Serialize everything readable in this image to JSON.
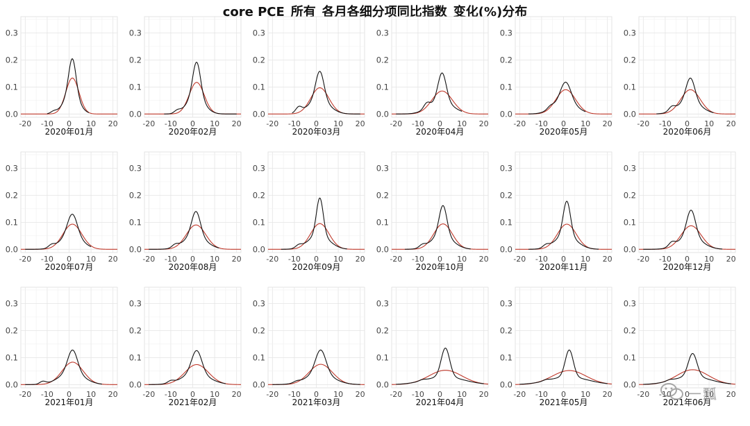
{
  "title": "core PCE_所有_各月各细分项同比指数_变化(%)分布",
  "watermark": "一瓢",
  "colors": {
    "density": "#111111",
    "normal": "#c0392b",
    "grid": "#e4e4e4",
    "axis_text": "#444444",
    "frame": "#dddddd"
  },
  "chart_data": {
    "type": "line",
    "description_axes": {
      "xlim": [
        -22,
        22
      ],
      "ylim": [
        -0.012,
        0.36
      ],
      "xticks": [
        -20,
        -10,
        0,
        10,
        20
      ],
      "yticks": [
        0.0,
        0.1,
        0.2,
        0.3
      ]
    },
    "ytick_labels": [
      "0.0",
      "0.1",
      "0.2",
      "0.3"
    ],
    "xtick_labels": [
      "-20",
      "-10",
      "0",
      "10",
      "20"
    ],
    "panels": [
      {
        "label": "2020年01月",
        "peak": 0.205,
        "mean": 1.5,
        "sd": 3.0,
        "normal_peak": 0.133,
        "x_range": [
          -10,
          9
        ],
        "left_bump": [
          -7,
          0.008
        ]
      },
      {
        "label": "2020年02月",
        "peak": 0.192,
        "mean": 1.8,
        "sd": 3.2,
        "normal_peak": 0.117,
        "x_range": [
          -13,
          20
        ],
        "left_bump": [
          -7,
          0.01
        ]
      },
      {
        "label": "2020年03月",
        "peak": 0.158,
        "mean": 1.6,
        "sd": 3.4,
        "normal_peak": 0.097,
        "x_range": [
          -11,
          20
        ],
        "left_bump": [
          -8,
          0.02
        ]
      },
      {
        "label": "2020年04月",
        "peak": 0.152,
        "mean": 1.0,
        "sd": 3.4,
        "normal_peak": 0.085,
        "x_range": [
          -20,
          10
        ],
        "left_bump": [
          -6,
          0.02
        ]
      },
      {
        "label": "2020年05月",
        "peak": 0.118,
        "mean": 1.0,
        "sd": 4.2,
        "normal_peak": 0.09,
        "x_range": [
          -16,
          10
        ],
        "left_bump": [
          -6,
          0.01
        ]
      },
      {
        "label": "2020年06月",
        "peak": 0.133,
        "mean": 1.5,
        "sd": 3.6,
        "normal_peak": 0.09,
        "x_range": [
          -14,
          12
        ],
        "left_bump": [
          -7,
          0.015
        ]
      },
      {
        "label": "2020年07月",
        "peak": 0.13,
        "mean": 1.5,
        "sd": 4.0,
        "normal_peak": 0.093,
        "x_range": [
          -20,
          10
        ],
        "left_bump": [
          -8,
          0.01
        ]
      },
      {
        "label": "2020年08月",
        "peak": 0.14,
        "mean": 1.5,
        "sd": 3.6,
        "normal_peak": 0.09,
        "x_range": [
          -20,
          12
        ],
        "left_bump": [
          -8,
          0.01
        ]
      },
      {
        "label": "2020年09月",
        "peak": 0.19,
        "mean": 1.6,
        "sd": 2.8,
        "normal_peak": 0.095,
        "x_range": [
          -16,
          14
        ],
        "left_bump": [
          -8,
          0.01
        ]
      },
      {
        "label": "2020年10月",
        "peak": 0.162,
        "mean": 1.4,
        "sd": 3.2,
        "normal_peak": 0.094,
        "x_range": [
          -16,
          14
        ],
        "left_bump": [
          -8,
          0.01
        ]
      },
      {
        "label": "2020年11月",
        "peak": 0.178,
        "mean": 1.5,
        "sd": 3.0,
        "normal_peak": 0.093,
        "x_range": [
          -16,
          16
        ],
        "left_bump": [
          -8,
          0.01
        ]
      },
      {
        "label": "2020年12月",
        "peak": 0.145,
        "mean": 1.8,
        "sd": 3.6,
        "normal_peak": 0.087,
        "x_range": [
          -20,
          16
        ],
        "left_bump": [
          -7,
          0.015
        ]
      },
      {
        "label": "2021年01月",
        "peak": 0.128,
        "mean": 1.6,
        "sd": 4.0,
        "normal_peak": 0.083,
        "x_range": [
          -20,
          15
        ],
        "left_bump": [
          -12,
          0.01
        ]
      },
      {
        "label": "2021年02月",
        "peak": 0.126,
        "mean": 1.8,
        "sd": 4.2,
        "normal_peak": 0.074,
        "x_range": [
          -20,
          15
        ],
        "left_bump": [
          -10,
          0.008
        ]
      },
      {
        "label": "2021年03月",
        "peak": 0.128,
        "mean": 2.0,
        "sd": 4.3,
        "normal_peak": 0.075,
        "x_range": [
          -20,
          20
        ],
        "left_bump": [
          -9,
          0.005
        ]
      },
      {
        "label": "2021年04月",
        "peak": 0.135,
        "mean": 2.5,
        "sd": 3.5,
        "normal_peak": 0.053,
        "x_range": [
          -20,
          20
        ],
        "left_bump": [
          -8,
          0.004
        ]
      },
      {
        "label": "2021年05月",
        "peak": 0.128,
        "mean": 2.6,
        "sd": 3.3,
        "normal_peak": 0.052,
        "x_range": [
          -20,
          20
        ],
        "left_bump": [
          -8,
          0.004
        ]
      },
      {
        "label": "2021年06月",
        "peak": 0.115,
        "mean": 2.5,
        "sd": 3.6,
        "normal_peak": 0.055,
        "x_range": [
          -20,
          20
        ],
        "left_bump": [
          -8,
          0.004
        ]
      }
    ]
  }
}
